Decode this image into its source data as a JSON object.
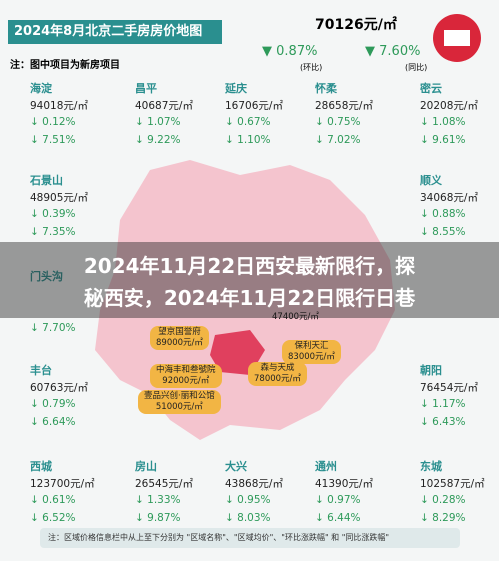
{
  "header": {
    "title": "2024年8月北京二手房房价地图",
    "note": "注：图中项目为新房项目",
    "avg_price": "70126元/㎡",
    "mom": "0.87%",
    "mom_label": "(环比)",
    "yoy": "7.60%",
    "yoy_label": "(同比)"
  },
  "districts": [
    {
      "name": "海淀",
      "price": "94018元/㎡",
      "mom": "↓ 0.12%",
      "yoy": "↓ 7.51%"
    },
    {
      "name": "昌平",
      "price": "40687元/㎡",
      "mom": "↓ 1.07%",
      "yoy": "↓ 9.22%"
    },
    {
      "name": "延庆",
      "price": "16706元/㎡",
      "mom": "↓ 0.67%",
      "yoy": "↓ 1.10%"
    },
    {
      "name": "怀柔",
      "price": "28658元/㎡",
      "mom": "↓ 0.75%",
      "yoy": "↓ 7.02%"
    },
    {
      "name": "密云",
      "price": "20208元/㎡",
      "mom": "↓ 1.08%",
      "yoy": "↓ 9.61%"
    },
    {
      "name": "石景山",
      "price": "48905元/㎡",
      "mom": "↓ 0.39%",
      "yoy": "↓ 7.35%"
    },
    {
      "name": "顺义",
      "price": "34068元/㎡",
      "mom": "↓ 0.88%",
      "yoy": "↓ 8.55%"
    },
    {
      "name": "门头沟",
      "yoy": "↓ 7.70%"
    },
    {
      "name": "丰台",
      "price": "60763元/㎡",
      "mom": "↓ 0.79%",
      "yoy": "↓ 6.64%"
    },
    {
      "name": "朝阳",
      "price": "76454元/㎡",
      "mom": "↓ 1.17%",
      "yoy": "↓ 6.43%"
    },
    {
      "name": "西城",
      "price": "123700元/㎡",
      "mom": "↓ 0.61%",
      "yoy": "↓ 6.52%"
    },
    {
      "name": "房山",
      "price": "26545元/㎡",
      "mom": "↓ 1.33%",
      "yoy": "↓ 9.87%"
    },
    {
      "name": "大兴",
      "price": "43868元/㎡",
      "mom": "↓ 0.95%",
      "yoy": "↓ 8.03%"
    },
    {
      "name": "通州",
      "price": "41390元/㎡",
      "mom": "↓ 0.97%",
      "yoy": "↓ 6.44%"
    },
    {
      "name": "东城",
      "price": "102587元/㎡",
      "mom": "↓ 0.28%",
      "yoy": "↓ 8.29%"
    }
  ],
  "projects": [
    {
      "name": "望京国誉府",
      "price": "89000元/㎡"
    },
    {
      "name": "保利天汇",
      "price": "83000元/㎡"
    },
    {
      "name": "中海丰和叁號院",
      "price": "92000元/㎡"
    },
    {
      "name": "森与天成",
      "price": "78000元/㎡"
    },
    {
      "name": "壹品兴创·丽和公馆",
      "price": "51000元/㎡"
    }
  ],
  "partial_price": "47400元/㎡",
  "overlay": {
    "lines": [
      "2024年11月22日西安最新限行，探",
      "秘西安，2024年11月22日限行日巷"
    ]
  },
  "footer": "注：区域价格信息栏中从上至下分别为 \"区域名称\"、\"区域均价\"、\"环比涨跌幅\" 和 \"同比涨跌幅\""
}
